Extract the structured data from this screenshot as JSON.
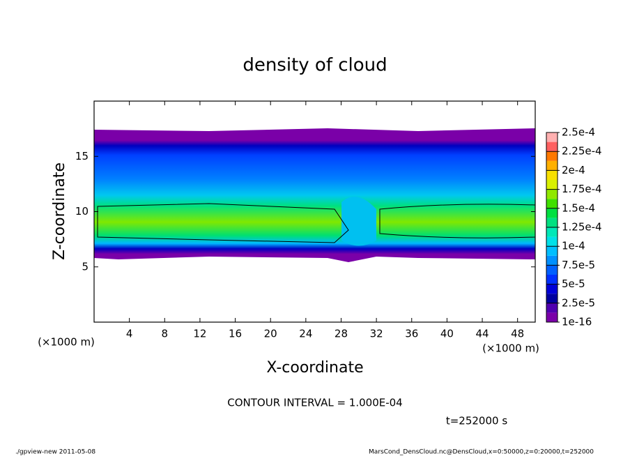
{
  "chart_data": {
    "type": "contour",
    "title": "density of cloud",
    "xlabel": "X-coordinate",
    "ylabel": "Z-coordinate",
    "xunit": "(×1000 m)",
    "yunit": "(×1000 m)",
    "xlim": [
      0,
      50
    ],
    "xticks": [
      4,
      8,
      12,
      16,
      20,
      24,
      28,
      32,
      36,
      40,
      44,
      48
    ],
    "ylim": [
      0,
      20
    ],
    "yticks": [
      5,
      10,
      15
    ],
    "contour_note": "CONTOUR INTERVAL = 1.000E-04",
    "time_note": "t=252000 s",
    "colorbar": {
      "levels": [
        {
          "value": 1e-16,
          "label": "1e-16"
        },
        {
          "value": 2.5e-05,
          "label": "2.5e-5"
        },
        {
          "value": 5e-05,
          "label": "5e-5"
        },
        {
          "value": 7.5e-05,
          "label": "7.5e-5"
        },
        {
          "value": 0.0001,
          "label": "1e-4"
        },
        {
          "value": 0.000125,
          "label": "1.25e-4"
        },
        {
          "value": 0.00015,
          "label": "1.5e-4"
        },
        {
          "value": 0.000175,
          "label": "1.75e-4"
        },
        {
          "value": 0.0002,
          "label": "2e-4"
        },
        {
          "value": 0.000225,
          "label": "2.25e-4"
        },
        {
          "value": 0.00025,
          "label": "2.5e-4"
        }
      ],
      "colors": [
        "#7a00a8",
        "#5000b0",
        "#0000a0",
        "#0000d8",
        "#0030ff",
        "#0060ff",
        "#0090ff",
        "#00bfff",
        "#00e0e8",
        "#00e8b8",
        "#00e080",
        "#00e040",
        "#40e000",
        "#90e800",
        "#d8f000",
        "#f8e000",
        "#ffb000",
        "#ff7800",
        "#ff6060",
        "#ffb0b0"
      ]
    }
  },
  "footer": {
    "left": "./gpview-new  2011-05-08",
    "right": "MarsCond_DensCloud.nc@DensCloud,x=0:50000,z=0:20000,t=252000"
  }
}
